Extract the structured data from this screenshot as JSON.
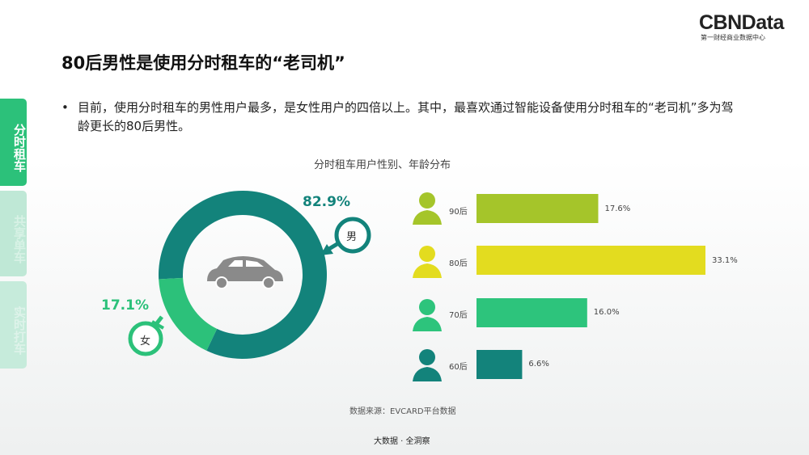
{
  "logo": {
    "name": "CBNData",
    "tagline": "第一财经商业数据中心"
  },
  "title": "80后男性是使用分时租车的“老司机”",
  "bullet": "目前，使用分时租车的男性用户最多，是女性用户的四倍以上。其中，最喜欢通过智能设备使用分时租车的“老司机”多为驾龄更长的80后男性。",
  "tabs": [
    {
      "label": "分时租车",
      "active": true
    },
    {
      "label": "共享单车",
      "active": false
    },
    {
      "label": "实时打车",
      "active": false
    }
  ],
  "colors": {
    "male": "#13837b",
    "female": "#2cc17a",
    "tab_active": "#2cc17a",
    "tab_inactive": "#bfe8d6"
  },
  "chart_data": [
    {
      "type": "pie",
      "title": "分时租车用户性别、年龄分布",
      "donut": true,
      "categories": [
        "男",
        "女"
      ],
      "values": [
        82.9,
        17.1
      ],
      "labels": [
        "82.9%",
        "17.1%"
      ]
    },
    {
      "type": "bar",
      "orientation": "horizontal",
      "categories": [
        "90后",
        "80后",
        "70后",
        "60后"
      ],
      "values": [
        17.6,
        33.1,
        16.0,
        6.6
      ],
      "labels": [
        "17.6%",
        "33.1%",
        "16.0%",
        "6.6%"
      ],
      "colors": [
        "#a5c52a",
        "#e3dc1f",
        "#2dc47c",
        "#13837b"
      ]
    }
  ],
  "source": "数据来源：EVCARD平台数据",
  "footer": "大数据 · 全洞察"
}
